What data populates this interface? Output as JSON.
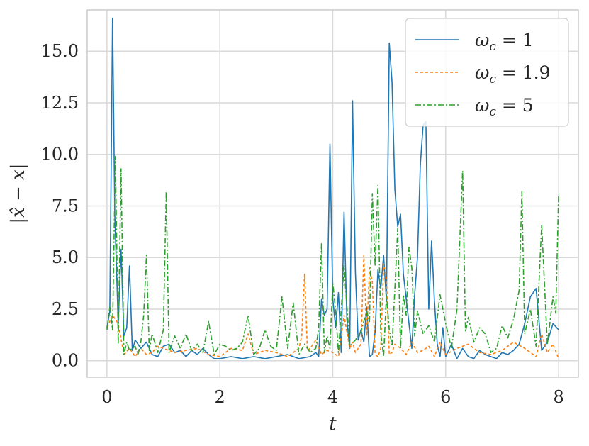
{
  "chart_data": {
    "type": "line",
    "xlabel": "t",
    "ylabel": "|x̂ − x|",
    "xlim": [
      -0.35,
      8.35
    ],
    "ylim": [
      -0.8,
      17.0
    ],
    "xticks": [
      0,
      2,
      4,
      6,
      8
    ],
    "xtick_labels": [
      "0",
      "2",
      "4",
      "6",
      "8"
    ],
    "yticks": [
      0.0,
      2.5,
      5.0,
      7.5,
      10.0,
      12.5,
      15.0
    ],
    "ytick_labels": [
      "0.0",
      "2.5",
      "5.0",
      "7.5",
      "10.0",
      "12.5",
      "15.0"
    ],
    "grid": true,
    "legend_position": "top-right",
    "series": [
      {
        "name": "ω_c = 1",
        "legend_label": {
          "symbol": "ω",
          "sub": "c",
          "eq": " = 1"
        },
        "color": "#1f77b4",
        "dash": "solid",
        "x": [
          0.0,
          0.05,
          0.1,
          0.14,
          0.2,
          0.25,
          0.3,
          0.35,
          0.4,
          0.45,
          0.5,
          0.6,
          0.7,
          0.8,
          0.9,
          1.0,
          1.1,
          1.2,
          1.3,
          1.4,
          1.5,
          1.6,
          1.7,
          1.8,
          1.9,
          2.0,
          2.2,
          2.4,
          2.6,
          2.8,
          3.0,
          3.2,
          3.4,
          3.6,
          3.7,
          3.75,
          3.8,
          3.85,
          3.9,
          3.95,
          4.0,
          4.05,
          4.1,
          4.15,
          4.2,
          4.25,
          4.3,
          4.35,
          4.4,
          4.45,
          4.5,
          4.55,
          4.6,
          4.65,
          4.7,
          4.75,
          4.8,
          4.85,
          4.9,
          4.95,
          5.0,
          5.05,
          5.1,
          5.15,
          5.2,
          5.25,
          5.3,
          5.35,
          5.4,
          5.45,
          5.5,
          5.55,
          5.6,
          5.65,
          5.7,
          5.75,
          5.8,
          5.85,
          5.9,
          5.95,
          6.0,
          6.1,
          6.2,
          6.3,
          6.4,
          6.5,
          6.6,
          6.7,
          6.8,
          6.9,
          7.0,
          7.1,
          7.2,
          7.3,
          7.4,
          7.5,
          7.6,
          7.7,
          7.8,
          7.9,
          8.0
        ],
        "y": [
          1.6,
          2.4,
          16.6,
          7.0,
          1.8,
          5.4,
          1.2,
          1.6,
          4.6,
          0.5,
          1.0,
          0.6,
          0.9,
          0.3,
          0.2,
          0.7,
          0.8,
          0.4,
          0.5,
          0.2,
          0.5,
          0.3,
          0.6,
          0.3,
          0.1,
          0.1,
          0.2,
          0.1,
          0.2,
          0.1,
          0.2,
          0.3,
          0.1,
          0.2,
          0.4,
          0.2,
          3.0,
          2.2,
          2.5,
          10.5,
          3.0,
          1.6,
          3.3,
          0.4,
          7.2,
          2.0,
          0.6,
          12.6,
          4.3,
          1.0,
          1.5,
          0.9,
          2.6,
          0.2,
          0.3,
          1.4,
          4.4,
          3.5,
          5.1,
          2.9,
          15.4,
          13.5,
          8.3,
          6.5,
          7.1,
          4.2,
          3.0,
          1.8,
          0.6,
          3.2,
          5.0,
          9.5,
          11.4,
          11.6,
          2.5,
          5.8,
          2.9,
          0.8,
          0.2,
          1.6,
          0.2,
          0.8,
          0.1,
          0.6,
          0.2,
          0.1,
          0.5,
          0.3,
          0.2,
          0.1,
          0.4,
          0.3,
          0.5,
          0.8,
          1.8,
          3.1,
          3.5,
          0.5,
          0.9,
          1.8,
          1.5
        ]
      },
      {
        "name": "ω_c = 1.9",
        "legend_label": {
          "symbol": "ω",
          "sub": "c",
          "eq": " = 1.9"
        },
        "color": "#ff7f0e",
        "dash": "4,3",
        "x": [
          0.0,
          0.1,
          0.2,
          0.3,
          0.4,
          0.5,
          0.6,
          0.7,
          0.8,
          0.9,
          1.0,
          1.2,
          1.4,
          1.6,
          1.8,
          2.0,
          2.2,
          2.4,
          2.5,
          2.6,
          2.8,
          3.0,
          3.2,
          3.4,
          3.45,
          3.5,
          3.55,
          3.6,
          3.7,
          3.8,
          3.9,
          4.0,
          4.1,
          4.2,
          4.3,
          4.35,
          4.4,
          4.5,
          4.55,
          4.6,
          4.65,
          4.7,
          4.75,
          4.8,
          4.85,
          4.9,
          4.95,
          5.0,
          5.05,
          5.1,
          5.2,
          5.3,
          5.4,
          5.5,
          5.6,
          5.7,
          5.8,
          5.9,
          6.0,
          6.2,
          6.4,
          6.6,
          6.8,
          7.0,
          7.2,
          7.4,
          7.6,
          7.7,
          7.8,
          7.9,
          8.0
        ],
        "y": [
          1.6,
          2.2,
          1.8,
          0.3,
          0.6,
          0.2,
          0.6,
          0.3,
          0.4,
          0.7,
          0.6,
          0.4,
          0.5,
          0.6,
          0.3,
          0.2,
          0.6,
          0.5,
          1.3,
          0.3,
          0.5,
          0.4,
          0.2,
          0.6,
          1.2,
          4.2,
          0.5,
          0.6,
          1.0,
          0.3,
          0.5,
          0.4,
          0.2,
          2.2,
          0.6,
          0.9,
          0.4,
          0.8,
          5.1,
          1.2,
          4.5,
          3.8,
          0.3,
          0.2,
          0.6,
          4.7,
          3.9,
          0.3,
          0.4,
          0.8,
          0.6,
          0.3,
          0.9,
          0.4,
          0.5,
          0.7,
          0.2,
          0.9,
          0.3,
          0.6,
          0.8,
          0.4,
          0.3,
          0.5,
          0.9,
          0.6,
          0.2,
          1.3,
          0.4,
          0.8,
          0.1
        ]
      },
      {
        "name": "ω_c = 5",
        "legend_label": {
          "symbol": "ω",
          "sub": "c",
          "eq": " = 5"
        },
        "color": "#2ca02c",
        "dash": "8,3,2,3",
        "x": [
          0.0,
          0.05,
          0.1,
          0.15,
          0.2,
          0.25,
          0.3,
          0.35,
          0.4,
          0.45,
          0.5,
          0.55,
          0.6,
          0.65,
          0.7,
          0.75,
          0.8,
          0.9,
          1.0,
          1.05,
          1.1,
          1.2,
          1.3,
          1.4,
          1.5,
          1.6,
          1.7,
          1.8,
          1.9,
          2.0,
          2.1,
          2.2,
          2.3,
          2.4,
          2.5,
          2.6,
          2.7,
          2.8,
          2.9,
          3.0,
          3.1,
          3.2,
          3.3,
          3.4,
          3.5,
          3.6,
          3.7,
          3.75,
          3.8,
          3.85,
          3.9,
          3.95,
          4.0,
          4.05,
          4.1,
          4.2,
          4.3,
          4.4,
          4.5,
          4.6,
          4.65,
          4.7,
          4.75,
          4.8,
          4.85,
          4.9,
          4.95,
          5.0,
          5.05,
          5.1,
          5.15,
          5.2,
          5.25,
          5.3,
          5.35,
          5.4,
          5.45,
          5.5,
          5.6,
          5.7,
          5.8,
          5.9,
          6.0,
          6.1,
          6.2,
          6.3,
          6.35,
          6.4,
          6.5,
          6.6,
          6.7,
          6.8,
          6.9,
          7.0,
          7.1,
          7.2,
          7.3,
          7.35,
          7.4,
          7.5,
          7.6,
          7.7,
          7.8,
          7.9,
          7.95,
          8.0
        ],
        "y": [
          1.5,
          2.6,
          1.5,
          9.9,
          0.8,
          9.3,
          0.3,
          0.9,
          0.5,
          0.6,
          0.7,
          0.3,
          0.9,
          2.2,
          5.1,
          0.5,
          1.3,
          0.4,
          1.5,
          8.2,
          0.4,
          1.2,
          0.6,
          1.3,
          0.5,
          0.8,
          0.4,
          1.9,
          0.3,
          0.8,
          0.7,
          0.5,
          0.6,
          0.9,
          2.2,
          0.3,
          0.6,
          1.5,
          0.7,
          0.5,
          3.1,
          0.6,
          2.8,
          0.3,
          0.8,
          0.4,
          0.6,
          1.6,
          5.7,
          0.4,
          1.2,
          0.6,
          3.8,
          2.4,
          0.4,
          4.6,
          0.7,
          1.0,
          1.4,
          2.4,
          1.9,
          8.1,
          4.6,
          8.5,
          1.3,
          0.2,
          3.2,
          1.5,
          0.7,
          3.5,
          6.4,
          0.6,
          3.2,
          2.2,
          5.5,
          4.5,
          1.2,
          2.4,
          1.3,
          1.7,
          0.9,
          3.2,
          1.8,
          0.6,
          2.5,
          9.2,
          1.4,
          2.1,
          0.9,
          1.6,
          1.3,
          0.4,
          0.6,
          1.7,
          1.1,
          2.0,
          3.4,
          8.2,
          1.3,
          2.5,
          0.7,
          6.6,
          0.8,
          3.1,
          2.3,
          8.1
        ]
      }
    ]
  }
}
